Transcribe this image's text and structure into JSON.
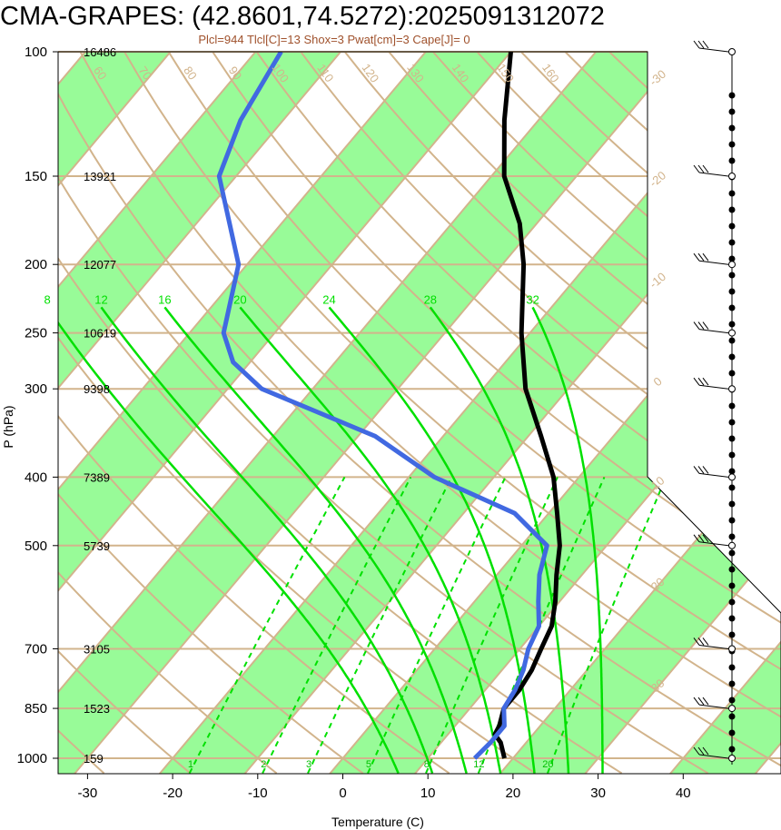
{
  "title": "CMA-GRAPES: (42.8601,74.5272):2025091312072",
  "subtitle": "Plcl=944 Tlcl[C]=13 Shox=3 Pwat[cm]=3 Cape[J]= 0",
  "xlabel": "Temperature (C)",
  "ylabel": "P (hPa)",
  "colors": {
    "temperature": "#000000",
    "dewpoint": "#4169e1",
    "moist_adiabat": "#00e000",
    "mixing_ratio": "#00e000",
    "isotherm_band": "#98fb98",
    "grid": "#d2b48c",
    "subtitle": "#a0522d"
  },
  "chart_data": {
    "type": "line",
    "chart_kind": "skew-T log-P",
    "y_scale": "log",
    "y_reversed": true,
    "xlim": [
      -33,
      52
    ],
    "ylim": [
      1050,
      100
    ],
    "grid": true,
    "legend": "none",
    "x_ticks": [
      "-30",
      "-20",
      "-10",
      "0",
      "10",
      "20",
      "30",
      "40"
    ],
    "pressure_levels": [
      {
        "p": 100,
        "label": "100",
        "height": "16486"
      },
      {
        "p": 150,
        "label": "150",
        "height": "13921"
      },
      {
        "p": 200,
        "label": "200",
        "height": "12077"
      },
      {
        "p": 250,
        "label": "250",
        "height": "10619"
      },
      {
        "p": 300,
        "label": "300",
        "height": "9398"
      },
      {
        "p": 400,
        "label": "400",
        "height": "7389"
      },
      {
        "p": 500,
        "label": "500",
        "height": "5739"
      },
      {
        "p": 700,
        "label": "700",
        "height": "3105"
      },
      {
        "p": 850,
        "label": "850",
        "height": "1523"
      },
      {
        "p": 1000,
        "label": "1000",
        "height": "159"
      }
    ],
    "series": [
      {
        "key": "temperature",
        "points": [
          [
            1000,
            19.0
          ],
          [
            950,
            17.0
          ],
          [
            925,
            15.5
          ],
          [
            900,
            15.2
          ],
          [
            850,
            14.0
          ],
          [
            800,
            14.0
          ],
          [
            750,
            13.5
          ],
          [
            700,
            12.5
          ],
          [
            650,
            11.5
          ],
          [
            600,
            9.5
          ],
          [
            550,
            7.0
          ],
          [
            500,
            4.5
          ],
          [
            450,
            1.0
          ],
          [
            400,
            -3.0
          ],
          [
            350,
            -8.5
          ],
          [
            300,
            -15.0
          ],
          [
            250,
            -21.0
          ],
          [
            200,
            -27.5
          ],
          [
            175,
            -32.0
          ],
          [
            150,
            -38.5
          ],
          [
            125,
            -44.0
          ],
          [
            100,
            -50.0
          ]
        ]
      },
      {
        "key": "dewpoint",
        "points": [
          [
            1000,
            15.5
          ],
          [
            950,
            15.8
          ],
          [
            900,
            15.8
          ],
          [
            850,
            14.0
          ],
          [
            800,
            13.5
          ],
          [
            750,
            12.5
          ],
          [
            700,
            11.0
          ],
          [
            650,
            10.0
          ],
          [
            600,
            7.5
          ],
          [
            550,
            5.0
          ],
          [
            500,
            3.0
          ],
          [
            450,
            -4.0
          ],
          [
            400,
            -17.0
          ],
          [
            350,
            -28.0
          ],
          [
            300,
            -46.0
          ],
          [
            275,
            -52.0
          ],
          [
            250,
            -56.0
          ],
          [
            200,
            -61.0
          ],
          [
            150,
            -72.0
          ],
          [
            125,
            -75.0
          ],
          [
            100,
            -77.0
          ]
        ]
      }
    ],
    "moist_adiabats": [
      "8",
      "12",
      "16",
      "20",
      "24",
      "28",
      "32"
    ],
    "mixing_ratios": [
      "1",
      "2",
      "3",
      "5",
      "8",
      "12",
      "20"
    ],
    "dry_adiabat_labels": [
      "-30",
      "-20",
      "-10",
      "0",
      "10",
      "20",
      "30",
      "40",
      "50",
      "60",
      "70",
      "80",
      "90",
      "100",
      "110",
      "120",
      "130",
      "140",
      "150",
      "160"
    ],
    "isotherm_labels": [
      "-30",
      "-20",
      "-10",
      "0",
      "10",
      "20",
      "30"
    ],
    "wind_profile": "barbs"
  }
}
